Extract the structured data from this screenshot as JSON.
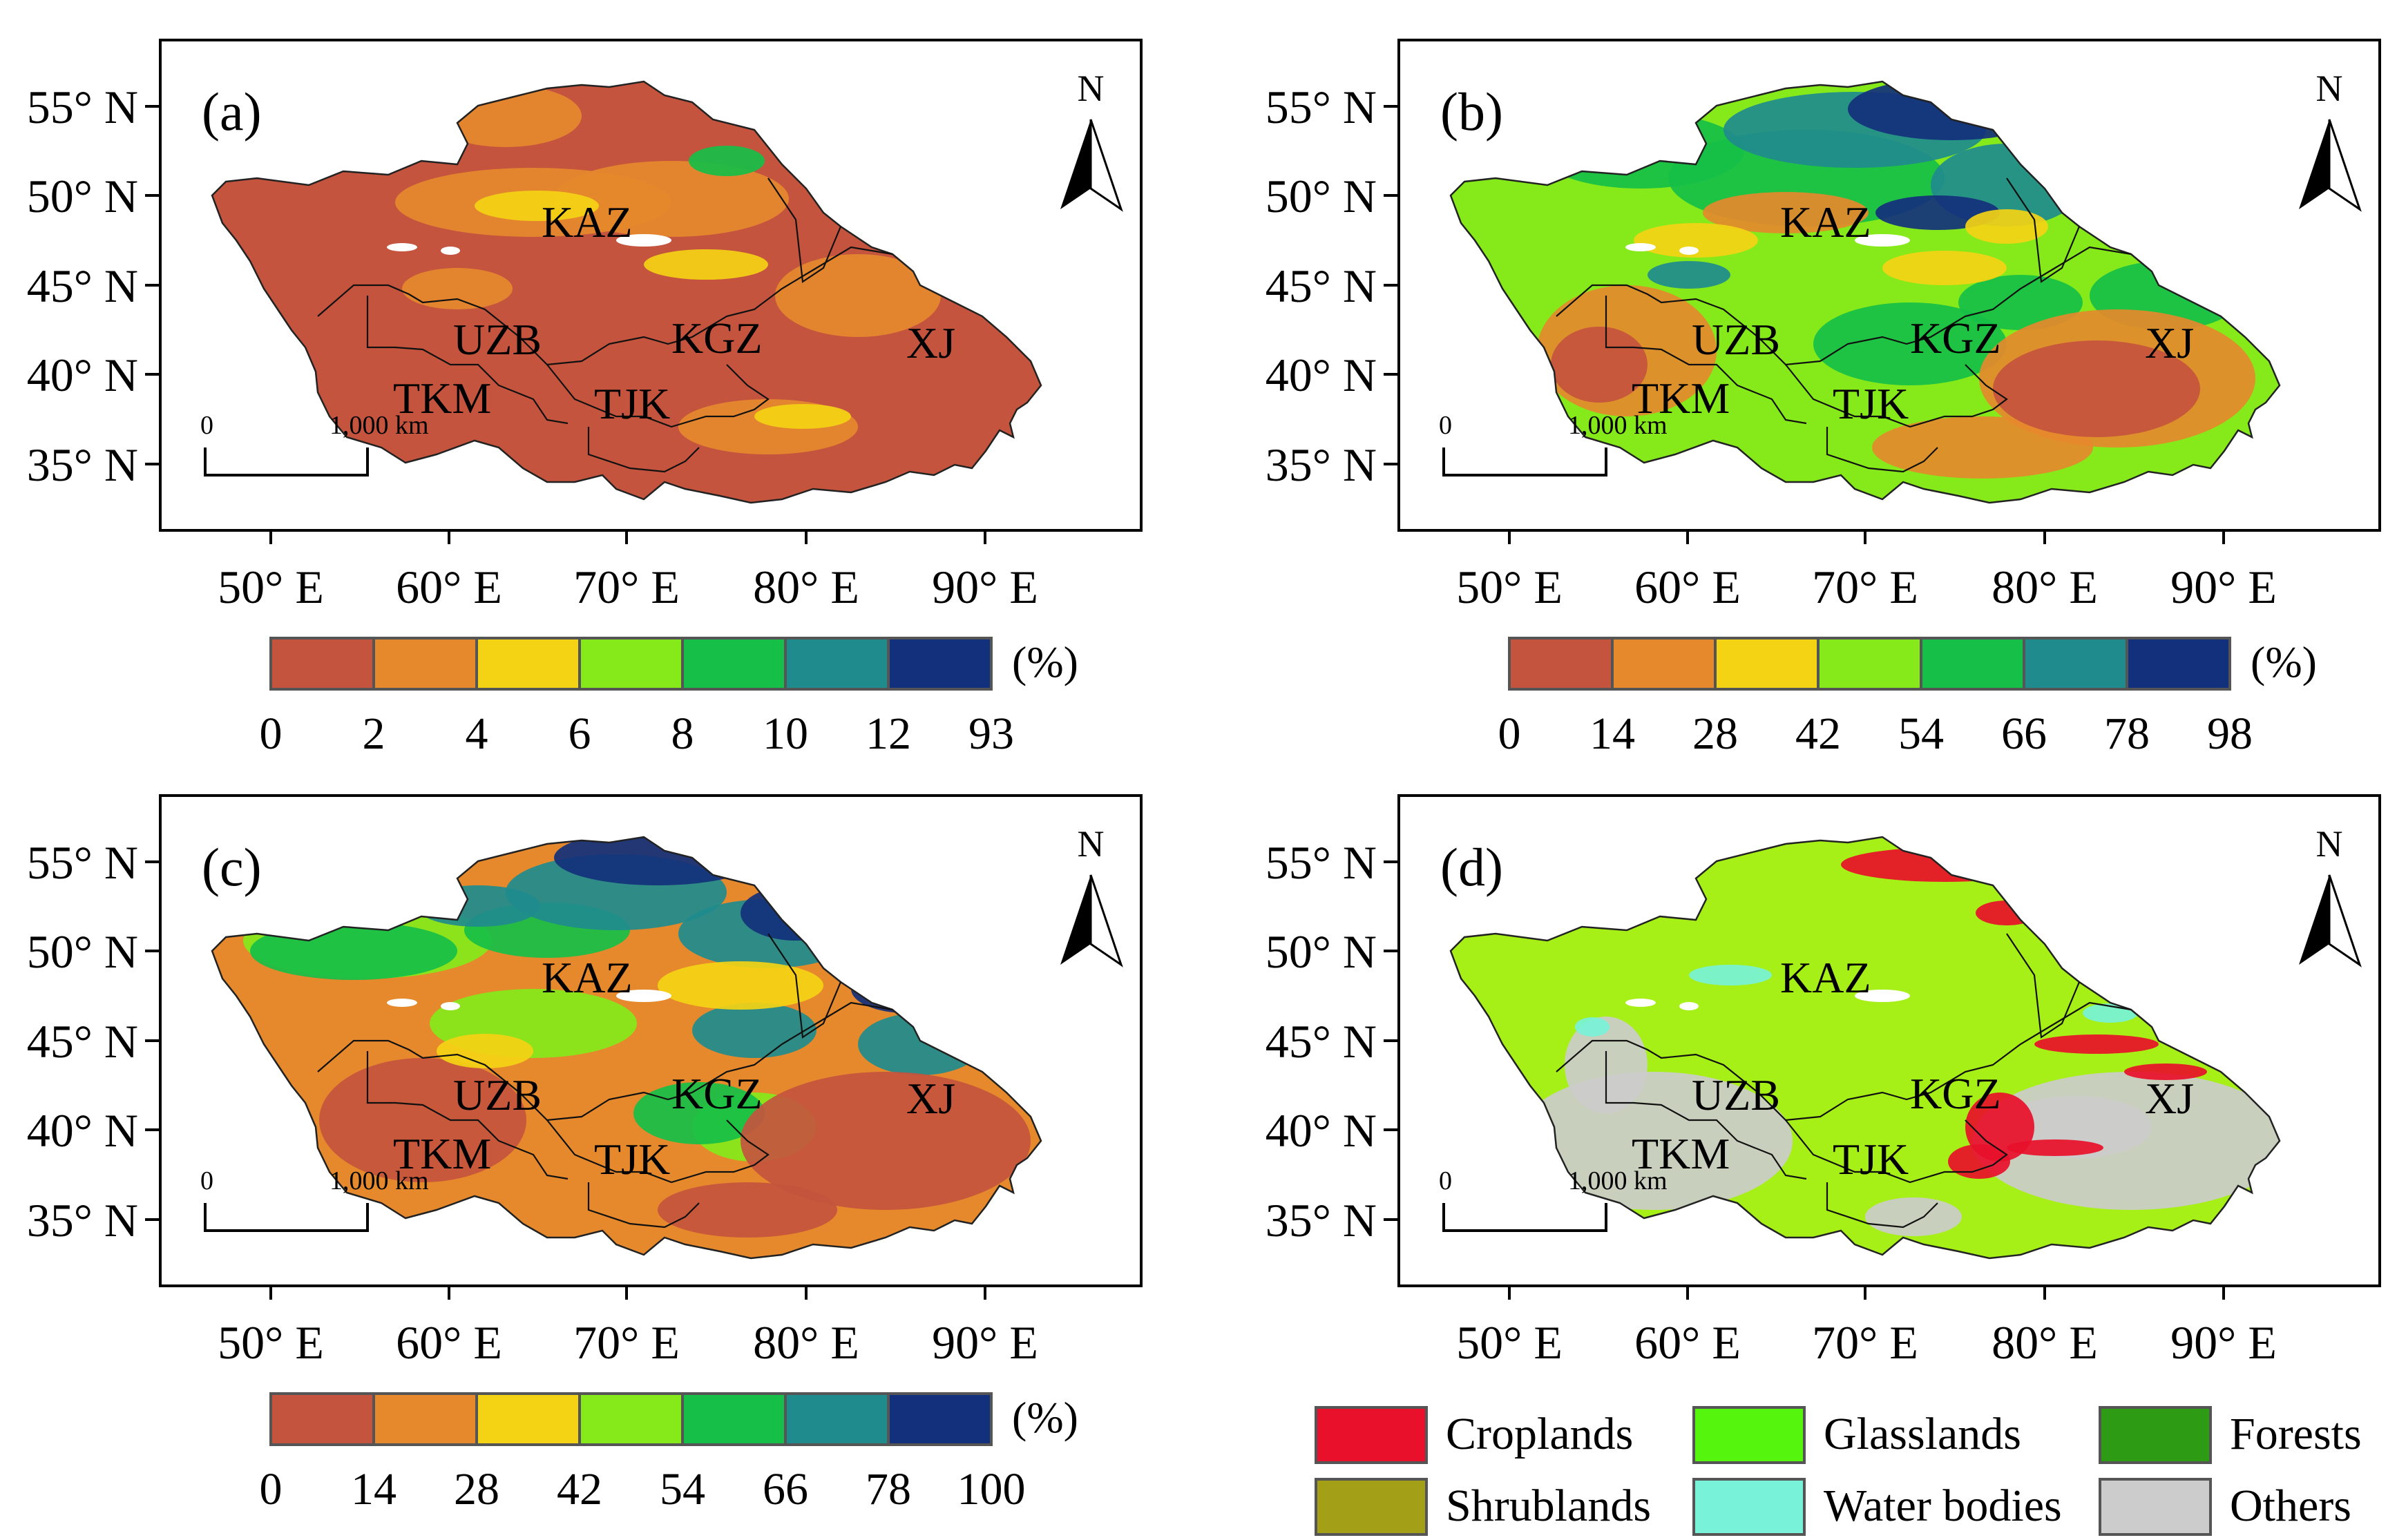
{
  "axes": {
    "lat_labels": [
      "55° N",
      "50° N",
      "45° N",
      "40° N",
      "35° N"
    ],
    "lon_labels": [
      "50° E",
      "60° E",
      "70° E",
      "80° E",
      "90° E"
    ]
  },
  "map": {
    "countries": [
      "KAZ",
      "UZB",
      "KGZ",
      "TKM",
      "TJK",
      "XJ"
    ],
    "north_label": "N",
    "scale_start": "0",
    "scale_end": "1,000 km"
  },
  "panels": [
    {
      "label": "(a)",
      "kind": "ramp",
      "legend_ticks": [
        "0",
        "2",
        "4",
        "6",
        "8",
        "10",
        "12",
        "93"
      ],
      "unit": "(%)"
    },
    {
      "label": "(b)",
      "kind": "ramp",
      "legend_ticks": [
        "0",
        "14",
        "28",
        "42",
        "54",
        "66",
        "78",
        "98"
      ],
      "unit": "(%)"
    },
    {
      "label": "(c)",
      "kind": "ramp",
      "legend_ticks": [
        "0",
        "14",
        "28",
        "42",
        "54",
        "66",
        "78",
        "100"
      ],
      "unit": "(%)"
    },
    {
      "label": "(d)",
      "kind": "landcover"
    }
  ],
  "ramp_colors": [
    "#c4543e",
    "#e5892c",
    "#f4d315",
    "#86ea1a",
    "#16bf47",
    "#1f8b8d",
    "#13307c"
  ],
  "landcover_legend": [
    {
      "label": "Croplands",
      "color": "#e8102a"
    },
    {
      "label": "Glasslands",
      "color": "#55f50e"
    },
    {
      "label": "Forests",
      "color": "#2e9b14"
    },
    {
      "label": "Shrublands",
      "color": "#a3a017"
    },
    {
      "label": "Water bodies",
      "color": "#78f2d8"
    },
    {
      "label": "Others",
      "color": "#cccccc"
    }
  ],
  "landcover_colors": {
    "base": "#a6ef17",
    "others": "#cccccc",
    "crop": "#e8102a",
    "water": "#78f2d8"
  }
}
